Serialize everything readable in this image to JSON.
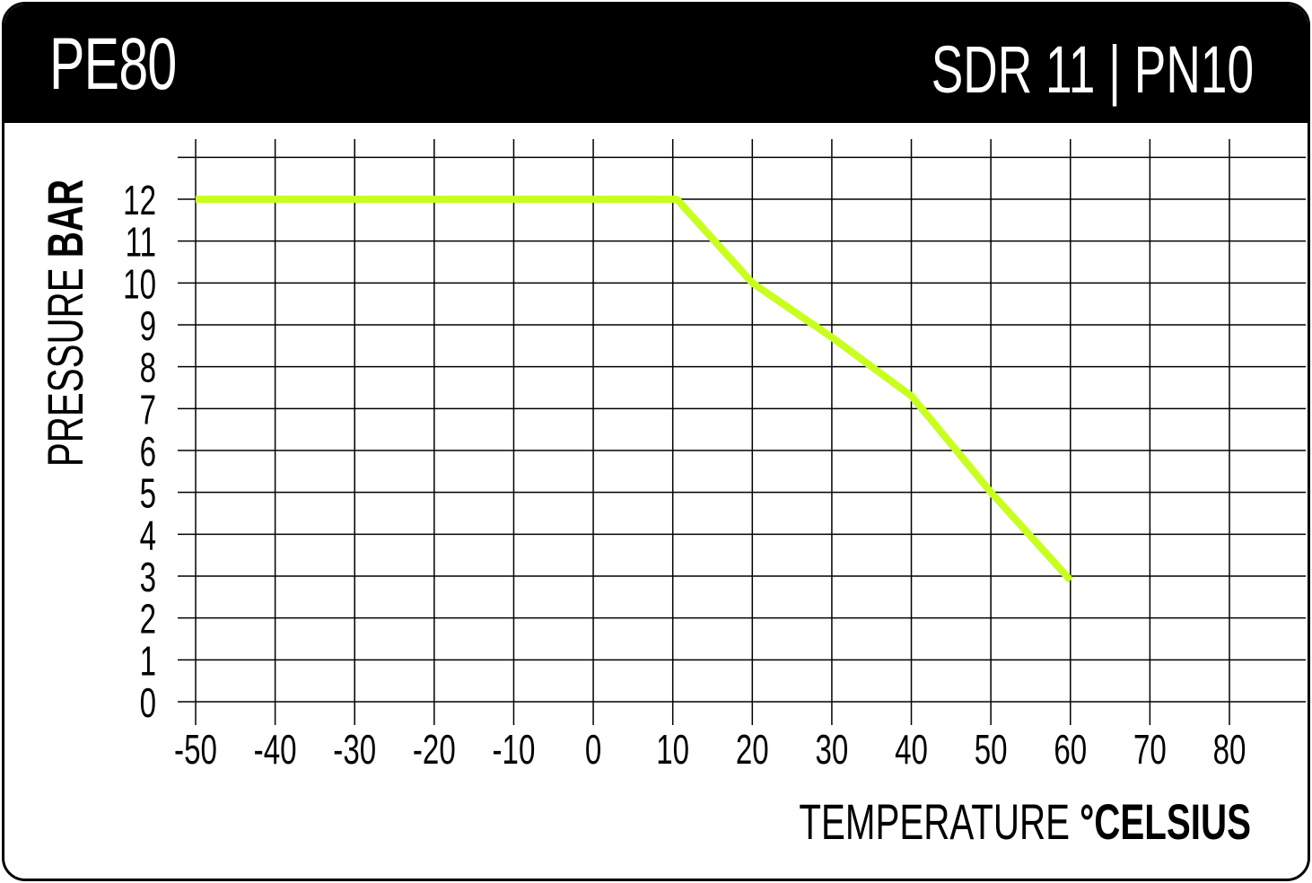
{
  "header": {
    "title": "PE80",
    "subtitle": "SDR 11 | PN10"
  },
  "colors": {
    "header_bg": "#000000",
    "line": "#c8ff1e",
    "grid": "#000000"
  },
  "chart_data": {
    "type": "line",
    "title": "PE80",
    "subtitle": "SDR 11 | PN10",
    "xlabel": {
      "regular": "TEMPERATURE ",
      "bold": "°CELSIUS"
    },
    "ylabel": {
      "regular": "PRESSURE ",
      "bold": "BAR"
    },
    "xlim": [
      -50,
      80
    ],
    "ylim": [
      0,
      12
    ],
    "x_ticks": [
      -50,
      -40,
      -30,
      -20,
      -10,
      0,
      10,
      20,
      30,
      40,
      50,
      60,
      70,
      80
    ],
    "y_ticks": [
      0,
      1,
      2,
      3,
      4,
      5,
      6,
      7,
      8,
      9,
      10,
      11,
      12
    ],
    "grid": true,
    "series": [
      {
        "x": [
          -50,
          10.5,
          20,
          30,
          40,
          50,
          60
        ],
        "y": [
          12,
          12,
          10,
          8.7,
          7.3,
          5,
          2.9
        ]
      }
    ]
  }
}
